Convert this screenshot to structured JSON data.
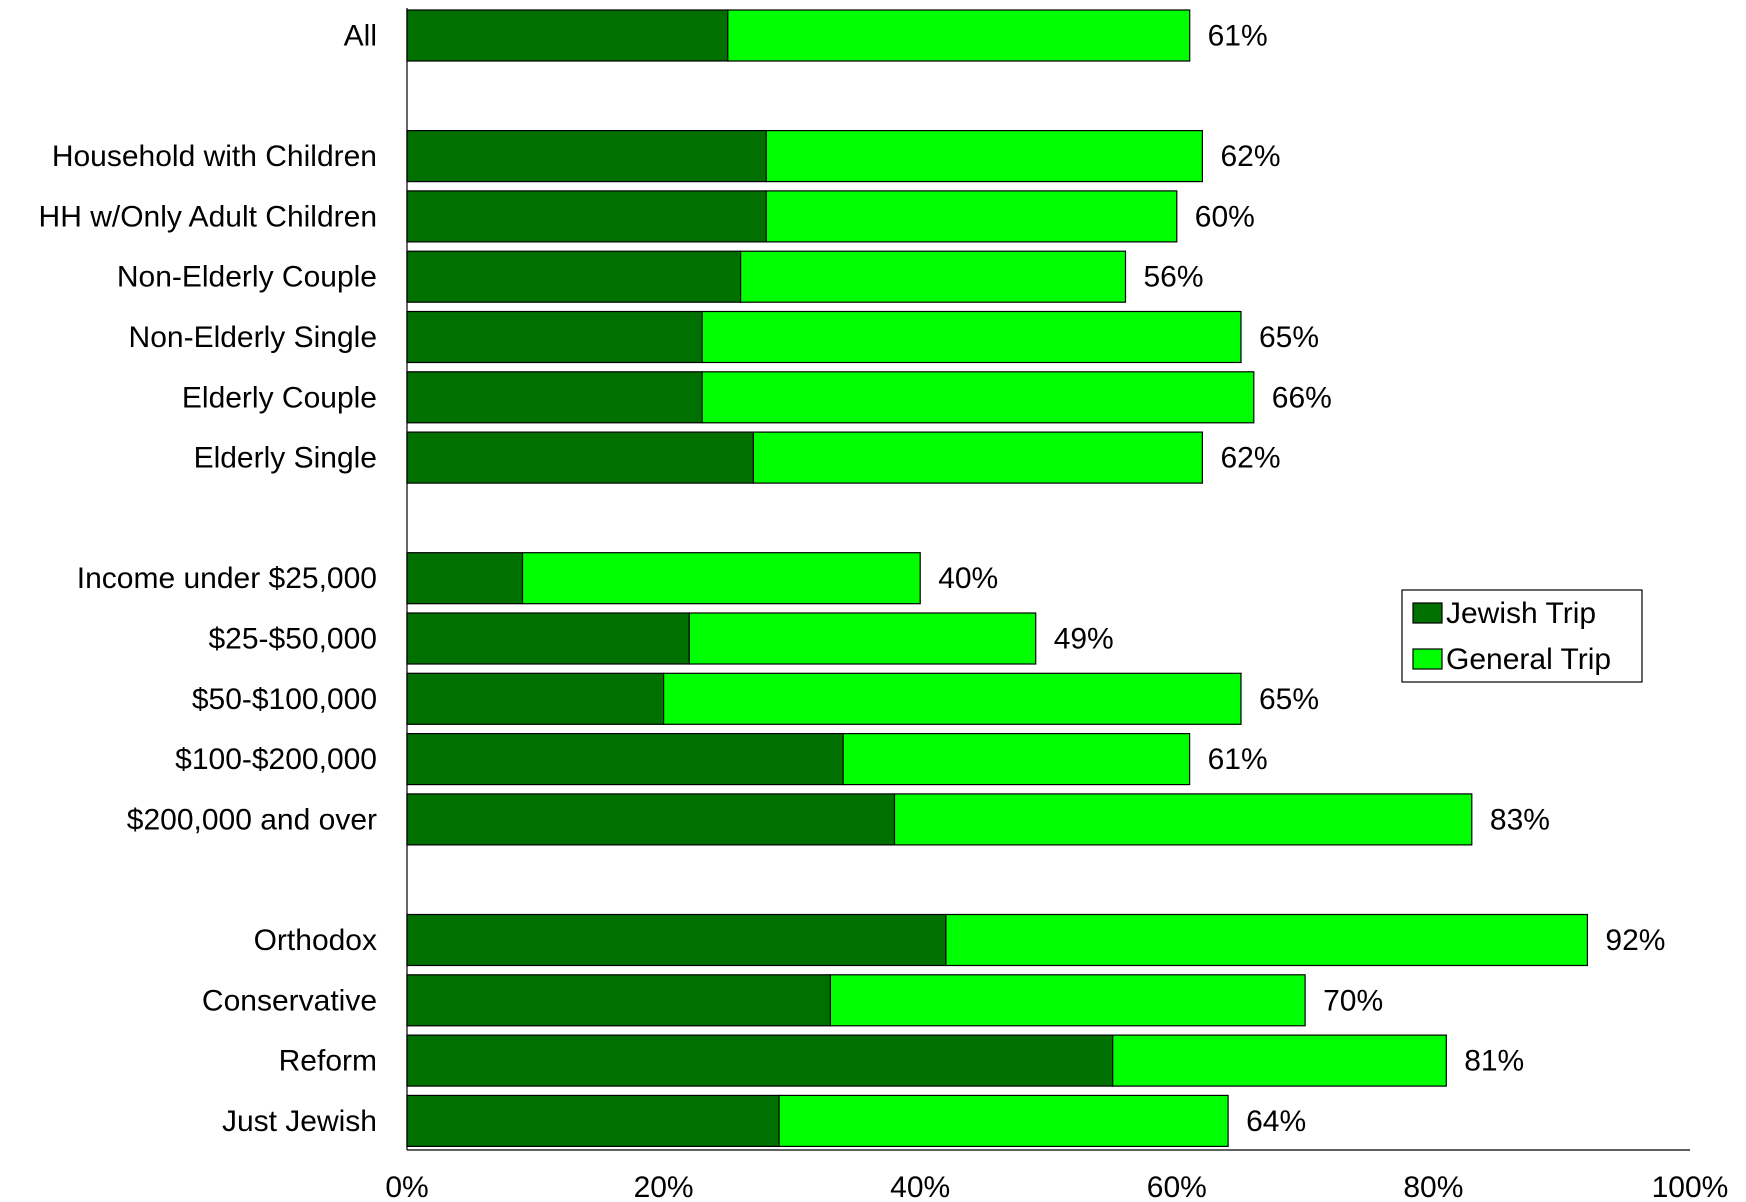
{
  "chart_data": {
    "type": "bar",
    "orientation": "horizontal",
    "stacked": true,
    "categories": [
      "All",
      "Household with Children",
      "HH w/Only Adult Children",
      "Non-Elderly Couple",
      "Non-Elderly Single",
      "Elderly Couple",
      "Elderly Single",
      "Income under $25,000",
      "$25-$50,000",
      "$50-$100,000",
      "$100-$200,000",
      "$200,000 and over",
      "Orthodox",
      "Conservative",
      "Reform",
      "Just Jewish"
    ],
    "groups": [
      1,
      6,
      5,
      4
    ],
    "series": [
      {
        "name": "Jewish Trip",
        "values": [
          25,
          28,
          28,
          26,
          23,
          23,
          27,
          9,
          22,
          20,
          34,
          38,
          42,
          33,
          55,
          29
        ],
        "color": "#007000"
      },
      {
        "name": "General Trip",
        "values": [
          36,
          34,
          32,
          30,
          42,
          43,
          35,
          31,
          27,
          45,
          27,
          45,
          50,
          37,
          26,
          35
        ],
        "color": "#00ff00"
      }
    ],
    "total_labels": [
      "61%",
      "62%",
      "60%",
      "56%",
      "65%",
      "66%",
      "62%",
      "40%",
      "49%",
      "65%",
      "61%",
      "83%",
      "92%",
      "70%",
      "81%",
      "64%"
    ],
    "xlim": [
      0,
      100
    ],
    "xticks": [
      "0%",
      "20%",
      "40%",
      "60%",
      "80%",
      "100%"
    ],
    "grid": false,
    "legend_position": "right"
  }
}
